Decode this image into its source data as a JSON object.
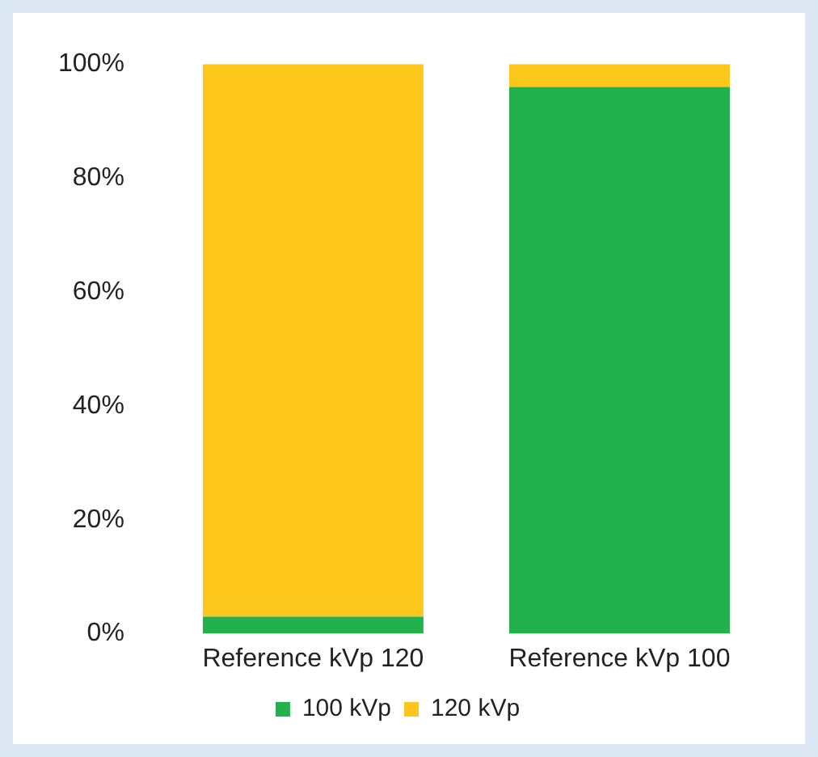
{
  "chart_data": {
    "type": "bar",
    "stacked": true,
    "categories": [
      "Reference kVp 120",
      "Reference kVp 100"
    ],
    "series": [
      {
        "name": "100 kVp",
        "color": "#22b14c",
        "values": [
          3,
          96
        ]
      },
      {
        "name": "120 kVp",
        "color": "#fdc61a",
        "values": [
          97,
          4
        ]
      }
    ],
    "ylim": [
      0,
      100
    ],
    "yticks": [
      {
        "value": 0,
        "label": "0%"
      },
      {
        "value": 20,
        "label": "20%"
      },
      {
        "value": 40,
        "label": "40%"
      },
      {
        "value": 60,
        "label": "60%"
      },
      {
        "value": 80,
        "label": "80%"
      },
      {
        "value": 100,
        "label": "100%"
      }
    ],
    "grid": false,
    "legend": "bottom"
  }
}
